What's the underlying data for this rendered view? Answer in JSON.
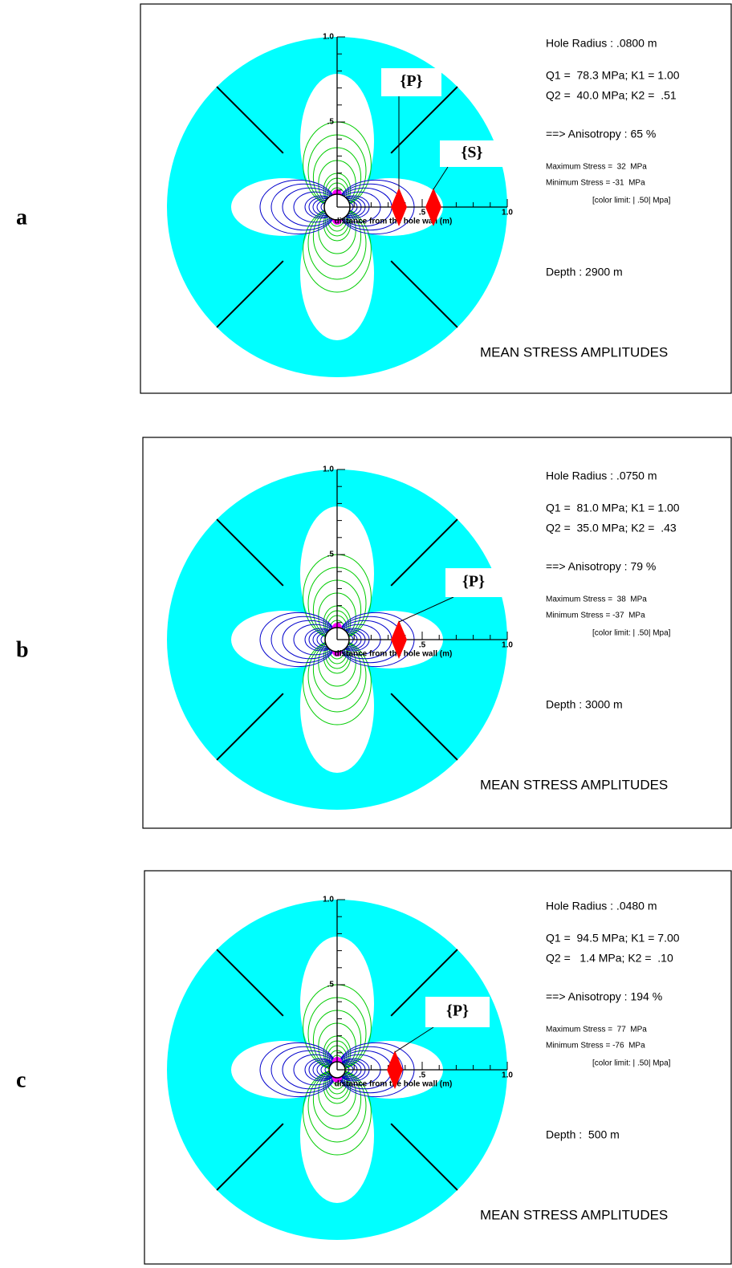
{
  "panels": [
    {
      "label": "a",
      "axis_top": "1.0",
      "axis_mid_y": ".5",
      "axis_mid_x": ".5",
      "axis_end_x": "1.0",
      "axis_title": "distance from the hole wall (m)",
      "hole_radius": "Hole Radius : .0800 m",
      "q1": "Q1 =  78.3 MPa; K1 = 1.00",
      "q2": "Q2 =  40.0 MPa; K2 =  .51",
      "anisotropy": "==> Anisotropy : 65 %",
      "max_stress": "Maximum Stress =  32  MPa",
      "min_stress": "Minimum Stress = -31  MPa",
      "color_limit": "[color limit: | .50| Mpa]",
      "depth": "Depth : 2900 m",
      "caption": "MEAN STRESS AMPLITUDES",
      "callouts": [
        "{P}",
        "{S}"
      ]
    },
    {
      "label": "b",
      "axis_top": "1.0",
      "axis_mid_y": ".5",
      "axis_mid_x": ".5",
      "axis_end_x": "1.0",
      "axis_title": "distance from the hole wall (m)",
      "hole_radius": "Hole Radius : .0750 m",
      "q1": "Q1 =  81.0 MPa; K1 = 1.00",
      "q2": "Q2 =  35.0 MPa; K2 =  .43",
      "anisotropy": "==> Anisotropy : 79 %",
      "max_stress": "Maximum Stress =  38  MPa",
      "min_stress": "Minimum Stress = -37  MPa",
      "color_limit": "[color limit: | .50| Mpa]",
      "depth": "Depth : 3000 m",
      "caption": "MEAN STRESS AMPLITUDES",
      "callouts": [
        "{P}"
      ]
    },
    {
      "label": "c",
      "axis_top": "1.0",
      "axis_mid_y": ".5",
      "axis_mid_x": ".5",
      "axis_end_x": "1.0",
      "axis_title": "distance from the hole wall (m)",
      "hole_radius": "Hole Radius : .0480 m",
      "q1": "Q1 =  94.5 MPa; K1 = 7.00",
      "q2": "Q2 =   1.4 MPa; K2 =  .10",
      "anisotropy": "==> Anisotropy : 194 %",
      "max_stress": "Maximum Stress =  77  MPa",
      "min_stress": "Minimum Stress = -76  MPa",
      "color_limit": "[color limit: | .50| Mpa]",
      "depth": "Depth :  500 m",
      "caption": "MEAN STRESS AMPLITUDES",
      "callouts": [
        "{P}"
      ]
    }
  ]
}
